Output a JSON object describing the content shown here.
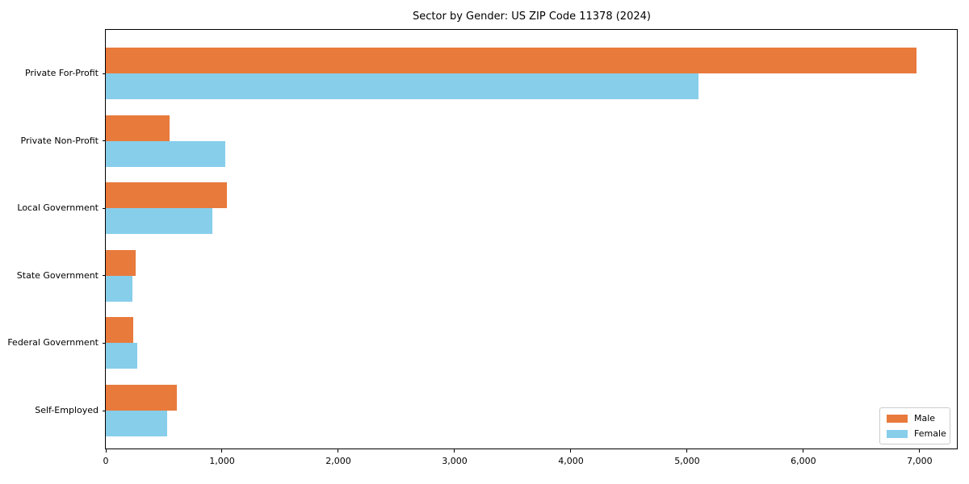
{
  "chart_data": {
    "type": "bar",
    "orientation": "horizontal",
    "title": "Sector by Gender: US ZIP Code 11378 (2024)",
    "categories": [
      "Private For-Profit",
      "Private Non-Profit",
      "Local Government",
      "State Government",
      "Federal Government",
      "Self-Employed"
    ],
    "series": [
      {
        "name": "Male",
        "color": "#e87a3c",
        "values": [
          6970,
          550,
          1040,
          255,
          235,
          610
        ]
      },
      {
        "name": "Female",
        "color": "#87ceeb",
        "values": [
          5100,
          1025,
          915,
          230,
          270,
          525
        ]
      }
    ],
    "xlim": [
      0,
      7320
    ],
    "x_ticks": [
      0,
      1000,
      2000,
      3000,
      4000,
      5000,
      6000,
      7000
    ],
    "x_tick_labels": [
      "0",
      "1,000",
      "2,000",
      "3,000",
      "4,000",
      "5,000",
      "6,000",
      "7,000"
    ],
    "xlabel": "",
    "ylabel": "",
    "grid": false,
    "legend": {
      "position": "lower right"
    }
  }
}
